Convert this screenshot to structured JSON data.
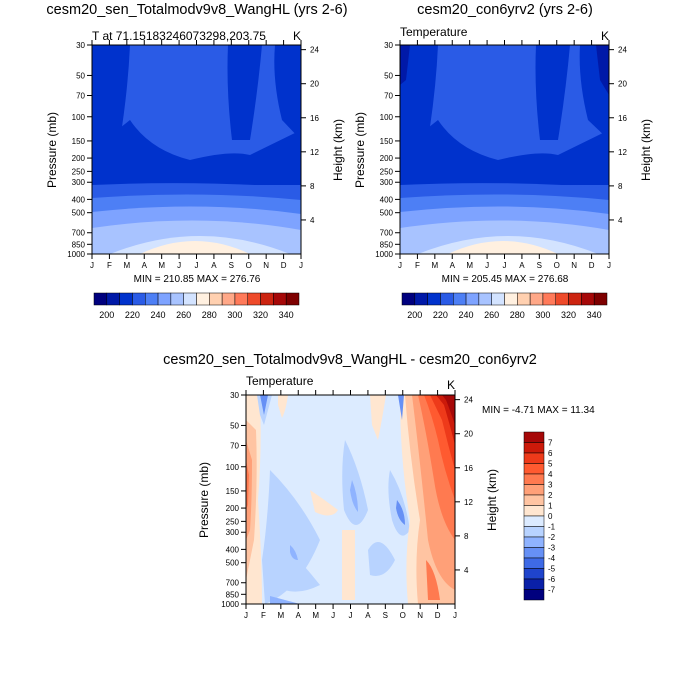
{
  "chart_data": [
    {
      "type": "contour",
      "title": "cesm20_sen_Totalmodv9v8_WangHL (yrs 2-6)",
      "left_label": "T at 71.15183246073298,203.75",
      "right_label": "K",
      "ylabel": "Pressure (mb)",
      "ylabel_right": "Height (km)",
      "x_ticks": [
        "J",
        "F",
        "M",
        "A",
        "M",
        "J",
        "J",
        "A",
        "S",
        "O",
        "N",
        "D",
        "J"
      ],
      "y_ticks": [
        "30",
        "50",
        "70",
        "100",
        "150",
        "200",
        "250",
        "300",
        "400",
        "500",
        "700",
        "850",
        "1000"
      ],
      "y_ticks_right": [
        "24",
        "20",
        "16",
        "12",
        "8",
        "4"
      ],
      "stats": "MIN = 210.85  MAX = 276.76",
      "colorbar": {
        "labels": [
          "200",
          "220",
          "240",
          "260",
          "280",
          "300",
          "320",
          "340"
        ],
        "colors": [
          "#00007e",
          "#0019a8",
          "#0032cc",
          "#2a5be6",
          "#4d7ff5",
          "#7ea3ff",
          "#a8c3ff",
          "#d3e3ff",
          "#fff0e0",
          "#ffd0b0",
          "#ffa888",
          "#ff7a5a",
          "#ee4a2a",
          "#cc2410",
          "#a60808",
          "#7e0000"
        ]
      }
    },
    {
      "type": "contour",
      "title": "cesm20_con6yrv2 (yrs 2-6)",
      "left_label": "Temperature",
      "right_label": "K",
      "ylabel": "Pressure (mb)",
      "ylabel_right": "Height (km)",
      "x_ticks": [
        "J",
        "F",
        "M",
        "A",
        "M",
        "J",
        "J",
        "A",
        "S",
        "O",
        "N",
        "D",
        "J"
      ],
      "y_ticks": [
        "30",
        "50",
        "70",
        "100",
        "150",
        "200",
        "250",
        "300",
        "400",
        "500",
        "700",
        "850",
        "1000"
      ],
      "y_ticks_right": [
        "24",
        "20",
        "16",
        "12",
        "8",
        "4"
      ],
      "stats": "MIN = 205.45  MAX = 276.68",
      "colorbar": {
        "labels": [
          "200",
          "220",
          "240",
          "260",
          "280",
          "300",
          "320",
          "340"
        ],
        "colors": [
          "#00007e",
          "#0019a8",
          "#0032cc",
          "#2a5be6",
          "#4d7ff5",
          "#7ea3ff",
          "#a8c3ff",
          "#d3e3ff",
          "#fff0e0",
          "#ffd0b0",
          "#ffa888",
          "#ff7a5a",
          "#ee4a2a",
          "#cc2410",
          "#a60808",
          "#7e0000"
        ]
      }
    },
    {
      "type": "contour",
      "title": "cesm20_sen_Totalmodv9v8_WangHL - cesm20_con6yrv2",
      "left_label": "Temperature",
      "right_label": "K",
      "ylabel": "Pressure (mb)",
      "ylabel_right": "Height (km)",
      "x_ticks": [
        "J",
        "F",
        "M",
        "A",
        "M",
        "J",
        "J",
        "A",
        "S",
        "O",
        "N",
        "D",
        "J"
      ],
      "y_ticks": [
        "30",
        "50",
        "70",
        "100",
        "150",
        "200",
        "250",
        "300",
        "400",
        "500",
        "700",
        "850",
        "1000"
      ],
      "y_ticks_right": [
        "24",
        "20",
        "16",
        "12",
        "8",
        "4"
      ],
      "stats": "MIN =  -4.71 MAX =  11.34",
      "colorbar": {
        "labels": [
          "7",
          "6",
          "5",
          "4",
          "3",
          "2",
          "1",
          "0",
          "-1",
          "-2",
          "-3",
          "-4",
          "-5",
          "-6",
          "-7"
        ],
        "colors": [
          "#a60808",
          "#cc1a0a",
          "#ee3a1a",
          "#ff5a30",
          "#ff7a50",
          "#ffa078",
          "#ffc4a2",
          "#ffe6d0",
          "#dcebff",
          "#b8d3ff",
          "#8fb3ff",
          "#6690f5",
          "#3e6ae6",
          "#1f44cc",
          "#0a20a8",
          "#00007e"
        ]
      }
    }
  ]
}
